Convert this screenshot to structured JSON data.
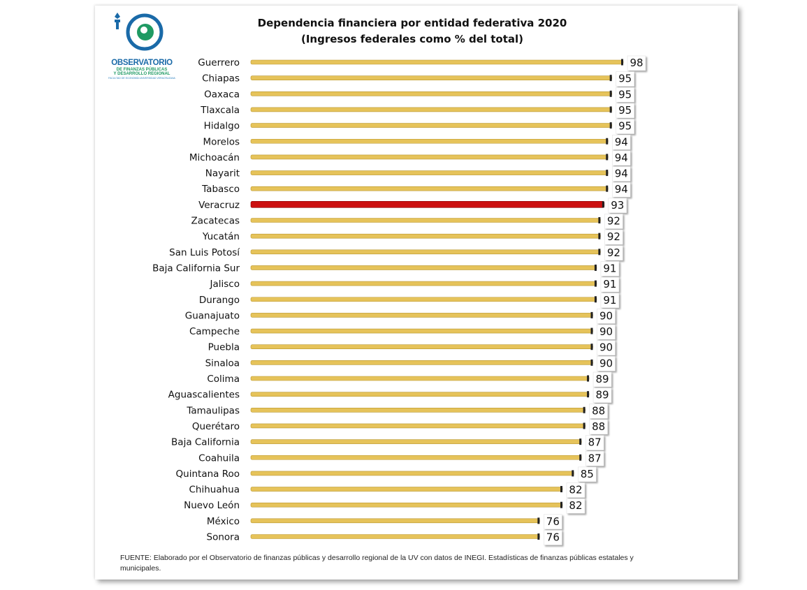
{
  "logo": {
    "title": "OBSERVATORIO",
    "line1": "DE FINANZAS PÚBLICAS",
    "line2": "Y DESARROLLO REGIONAL",
    "line3": "FACULTAD DE ECONOMÍA UNIVERSIDAD VERACRUZANA"
  },
  "colors": {
    "bar": "#e6c35a",
    "bar_highlight": "#cc1010",
    "logo_blue": "#1a6aa8",
    "logo_green": "#1f9a63"
  },
  "chart_data": {
    "type": "bar",
    "orientation": "horizontal",
    "title": "Dependencia financiera por entidad federativa 2020",
    "subtitle": "(Ingresos federales como % del total)",
    "categories": [
      "Guerrero",
      "Chiapas",
      "Oaxaca",
      "Tlaxcala",
      "Hidalgo",
      "Morelos",
      "Michoacán",
      "Nayarit",
      "Tabasco",
      "Veracruz",
      "Zacatecas",
      "Yucatán",
      "San Luis Potosí",
      "Baja California Sur",
      "Jalisco",
      "Durango",
      "Guanajuato",
      "Campeche",
      "Puebla",
      "Sinaloa",
      "Colima",
      "Aguascalientes",
      "Tamaulipas",
      "Querétaro",
      "Baja California",
      "Coahuila",
      "Quintana Roo",
      "Chihuahua",
      "Nuevo León",
      "México",
      "Sonora"
    ],
    "values": [
      98,
      95,
      95,
      95,
      95,
      94,
      94,
      94,
      94,
      93,
      92,
      92,
      92,
      91,
      91,
      91,
      90,
      90,
      90,
      90,
      89,
      89,
      88,
      88,
      87,
      87,
      85,
      82,
      82,
      76,
      76
    ],
    "highlight": "Veracruz",
    "data_labels": true,
    "grid": false,
    "legend": "none"
  },
  "footnote": "FUENTE: Elaborado por el Observatorio de finanzas públicas y desarrollo regional de la UV con datos de  INEGI. Estadísticas de finanzas públicas estatales y municipales."
}
